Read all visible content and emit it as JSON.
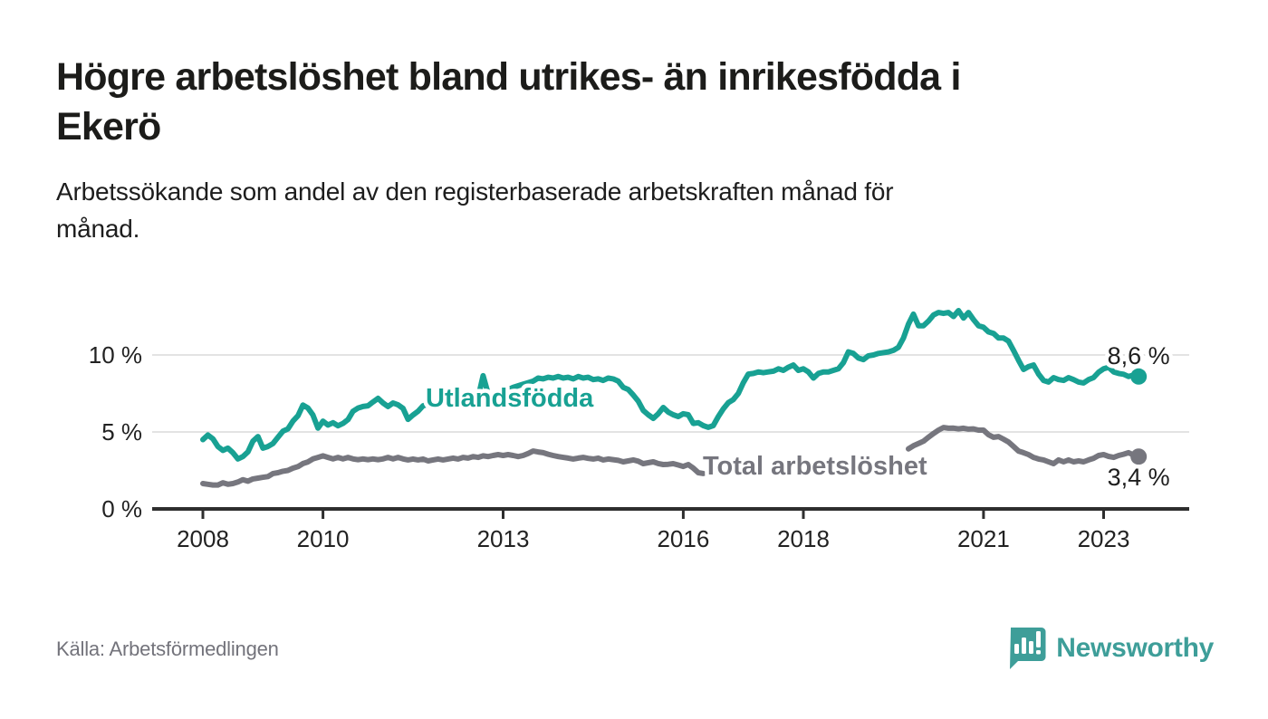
{
  "header": {
    "title_line1": "Högre arbetslöshet bland utrikes- än inrikesfödda i",
    "title_line2": "Ekerö",
    "subtitle_line1": "Arbetssökande som andel av den registerbaserade arbetskraften månad för",
    "subtitle_line2": "månad."
  },
  "footer": {
    "source": "Källa: Arbetsförmedlingen",
    "brand": "Newsworthy",
    "brand_color": "#3e9e99"
  },
  "chart_data": {
    "type": "line",
    "title": "Arbetssökande som andel av den registerbaserade arbetskraften månad för månad",
    "x_start_year": 2008,
    "points_per_year": 12,
    "xlim": [
      2007.15,
      2024.5
    ],
    "ylim": [
      0,
      13.5
    ],
    "grid": "horizontal-only",
    "axis_color": "#2e2e2e",
    "grid_color": "#e3e3e3",
    "tick_label_color": "#222222",
    "end_label_color": "#1e1e1e",
    "y_ticks": [
      {
        "label": "0 %",
        "v": 0
      },
      {
        "label": "5 %",
        "v": 5
      },
      {
        "label": "10 %",
        "v": 10
      }
    ],
    "x_ticks": [
      {
        "label": "2008",
        "t": 2008
      },
      {
        "label": "2010",
        "t": 2010
      },
      {
        "label": "2013",
        "t": 2013
      },
      {
        "label": "2016",
        "t": 2016
      },
      {
        "label": "2018",
        "t": 2018
      },
      {
        "label": "2021",
        "t": 2021
      },
      {
        "label": "2023",
        "t": 2023
      }
    ],
    "series": [
      {
        "name": "Total arbetslöshet",
        "color": "#76767e",
        "end_label": "3,4 %",
        "end_value": 3.4,
        "values": [
          1.65,
          1.6,
          1.55,
          1.55,
          1.7,
          1.6,
          1.65,
          1.75,
          1.9,
          1.8,
          1.95,
          2.0,
          2.05,
          2.1,
          2.3,
          2.35,
          2.45,
          2.5,
          2.65,
          2.75,
          2.95,
          3.05,
          3.25,
          3.35,
          3.45,
          3.35,
          3.25,
          3.35,
          3.25,
          3.35,
          3.25,
          3.2,
          3.25,
          3.2,
          3.25,
          3.2,
          3.25,
          3.35,
          3.25,
          3.35,
          3.25,
          3.18,
          3.24,
          3.18,
          3.24,
          3.12,
          3.18,
          3.24,
          3.18,
          3.24,
          3.3,
          3.24,
          3.35,
          3.3,
          3.4,
          3.35,
          3.45,
          3.4,
          3.47,
          3.53,
          3.47,
          3.53,
          3.47,
          3.4,
          3.47,
          3.6,
          3.76,
          3.7,
          3.65,
          3.55,
          3.47,
          3.4,
          3.35,
          3.3,
          3.24,
          3.3,
          3.35,
          3.28,
          3.24,
          3.3,
          3.18,
          3.24,
          3.2,
          3.15,
          3.06,
          3.12,
          3.18,
          3.1,
          2.94,
          3.0,
          3.06,
          2.95,
          2.88,
          2.9,
          2.94,
          2.85,
          2.76,
          2.88,
          2.65,
          2.35,
          2.3,
          null,
          null,
          null,
          null,
          null,
          null,
          null,
          null,
          null,
          null,
          null,
          null,
          null,
          null,
          null,
          null,
          null,
          null,
          null,
          null,
          null,
          null,
          null,
          null,
          null,
          null,
          null,
          null,
          null,
          null,
          null,
          null,
          null,
          null,
          null,
          null,
          null,
          null,
          null,
          null,
          3.9,
          4.1,
          4.25,
          4.4,
          4.65,
          4.9,
          5.12,
          5.29,
          5.24,
          5.25,
          5.2,
          5.24,
          5.18,
          5.2,
          5.12,
          5.12,
          4.82,
          4.65,
          4.7,
          4.53,
          4.35,
          4.06,
          3.76,
          3.65,
          3.53,
          3.35,
          3.24,
          3.18,
          3.06,
          2.94,
          3.18,
          3.06,
          3.18,
          3.06,
          3.12,
          3.06,
          3.18,
          3.29,
          3.47,
          3.53,
          3.41,
          3.35,
          3.47,
          3.55,
          3.65,
          3.5,
          3.4
        ]
      },
      {
        "name": "Utlandsfödda",
        "color": "#18a193",
        "end_label": "8,6 %",
        "end_value": 8.6,
        "values": [
          4.5,
          4.8,
          4.55,
          4.05,
          3.8,
          3.95,
          3.65,
          3.25,
          3.4,
          3.7,
          4.4,
          4.7,
          3.95,
          4.05,
          4.25,
          4.65,
          5.05,
          5.2,
          5.7,
          6.05,
          6.75,
          6.55,
          6.1,
          5.25,
          5.7,
          5.45,
          5.6,
          5.4,
          5.55,
          5.8,
          6.35,
          6.55,
          6.65,
          6.7,
          6.95,
          7.18,
          6.88,
          6.65,
          6.88,
          6.76,
          6.53,
          5.82,
          6.1,
          6.35,
          6.7,
          6.8,
          6.88,
          7.0,
          6.82,
          6.65,
          6.76,
          6.88,
          7.0,
          6.95,
          7.1,
          7.25,
          8.65,
          7.5,
          7.4,
          7.55,
          7.6,
          7.75,
          7.9,
          8.0,
          8.1,
          8.2,
          8.3,
          8.5,
          8.45,
          8.55,
          8.5,
          8.6,
          8.5,
          8.55,
          8.45,
          8.6,
          8.5,
          8.55,
          8.4,
          8.45,
          8.35,
          8.5,
          8.45,
          8.3,
          7.9,
          7.76,
          7.4,
          7.0,
          6.4,
          6.12,
          5.88,
          6.18,
          6.59,
          6.29,
          6.12,
          6.0,
          6.18,
          6.12,
          5.55,
          5.6,
          5.41,
          5.3,
          5.41,
          6.0,
          6.5,
          6.9,
          7.1,
          7.5,
          8.2,
          8.76,
          8.8,
          8.9,
          8.85,
          8.9,
          8.95,
          9.1,
          9.0,
          9.2,
          9.35,
          9.0,
          9.1,
          8.9,
          8.5,
          8.8,
          8.9,
          8.9,
          9.0,
          9.1,
          9.5,
          10.2,
          10.1,
          9.8,
          9.7,
          9.95,
          10.0,
          10.1,
          10.15,
          10.2,
          10.3,
          10.5,
          11.1,
          12.0,
          12.65,
          11.9,
          11.9,
          12.2,
          12.6,
          12.76,
          12.7,
          12.76,
          12.5,
          12.88,
          12.4,
          12.76,
          12.3,
          11.9,
          11.8,
          11.5,
          11.4,
          11.1,
          11.1,
          10.9,
          10.3,
          9.65,
          9.06,
          9.24,
          9.35,
          8.76,
          8.35,
          8.24,
          8.53,
          8.4,
          8.35,
          8.53,
          8.4,
          8.24,
          8.18,
          8.4,
          8.53,
          8.88,
          9.1,
          9.2,
          8.9,
          8.8,
          8.75,
          8.6,
          8.7,
          8.6
        ]
      }
    ],
    "legend_position": "inline-labels"
  }
}
